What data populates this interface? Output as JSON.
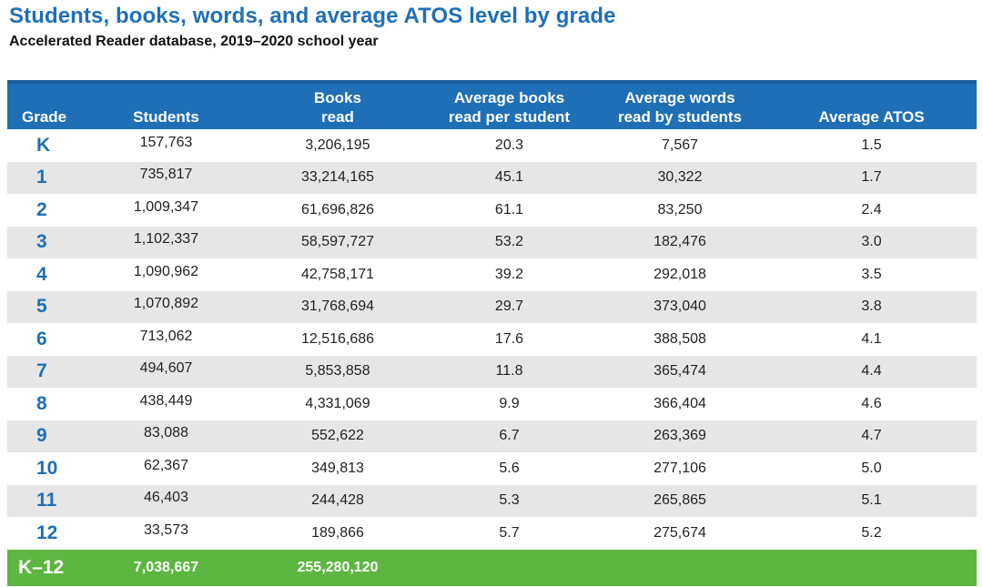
{
  "title": "Students, books, words, and average ATOS level by grade",
  "subtitle": "Accelerated Reader database, 2019–2020 school year",
  "colors": {
    "title": "#1f6fb6",
    "header_bg": "#1f6fb6",
    "stripe": "#e6e6e6",
    "total_bg": "#5cb641"
  },
  "chart_data": {
    "type": "table",
    "title": "Students, books, words, and average ATOS level by grade",
    "subtitle": "Accelerated Reader database, 2019–2020 school year",
    "columns": {
      "grade": "Grade",
      "students": "Students",
      "books_line1": "Books",
      "books_line2": "read",
      "avg_books_line1": "Average books",
      "avg_books_line2": "read per student",
      "avg_words_line1": "Average words",
      "avg_words_line2": "read by students",
      "atos": "Average ATOS"
    },
    "rows": [
      {
        "grade": "K",
        "students": "157,763",
        "books": "3,206,195",
        "avg_books": "20.3",
        "avg_words": "7,567",
        "atos": "1.5"
      },
      {
        "grade": "1",
        "students": "735,817",
        "books": "33,214,165",
        "avg_books": "45.1",
        "avg_words": "30,322",
        "atos": "1.7"
      },
      {
        "grade": "2",
        "students": "1,009,347",
        "books": "61,696,826",
        "avg_books": "61.1",
        "avg_words": "83,250",
        "atos": "2.4"
      },
      {
        "grade": "3",
        "students": "1,102,337",
        "books": "58,597,727",
        "avg_books": "53.2",
        "avg_words": "182,476",
        "atos": "3.0"
      },
      {
        "grade": "4",
        "students": "1,090,962",
        "books": "42,758,171",
        "avg_books": "39.2",
        "avg_words": "292,018",
        "atos": "3.5"
      },
      {
        "grade": "5",
        "students": "1,070,892",
        "books": "31,768,694",
        "avg_books": "29.7",
        "avg_words": "373,040",
        "atos": "3.8"
      },
      {
        "grade": "6",
        "students": "713,062",
        "books": "12,516,686",
        "avg_books": "17.6",
        "avg_words": "388,508",
        "atos": "4.1"
      },
      {
        "grade": "7",
        "students": "494,607",
        "books": "5,853,858",
        "avg_books": "11.8",
        "avg_words": "365,474",
        "atos": "4.4"
      },
      {
        "grade": "8",
        "students": "438,449",
        "books": "4,331,069",
        "avg_books": "9.9",
        "avg_words": "366,404",
        "atos": "4.6"
      },
      {
        "grade": "9",
        "students": "83,088",
        "books": "552,622",
        "avg_books": "6.7",
        "avg_words": "263,369",
        "atos": "4.7"
      },
      {
        "grade": "10",
        "students": "62,367",
        "books": "349,813",
        "avg_books": "5.6",
        "avg_words": "277,106",
        "atos": "5.0"
      },
      {
        "grade": "11",
        "students": "46,403",
        "books": "244,428",
        "avg_books": "5.3",
        "avg_words": "265,865",
        "atos": "5.1"
      },
      {
        "grade": "12",
        "students": "33,573",
        "books": "189,866",
        "avg_books": "5.7",
        "avg_words": "275,674",
        "atos": "5.2"
      }
    ],
    "total": {
      "grade": "K–12",
      "students": "7,038,667",
      "books": "255,280,120"
    }
  }
}
